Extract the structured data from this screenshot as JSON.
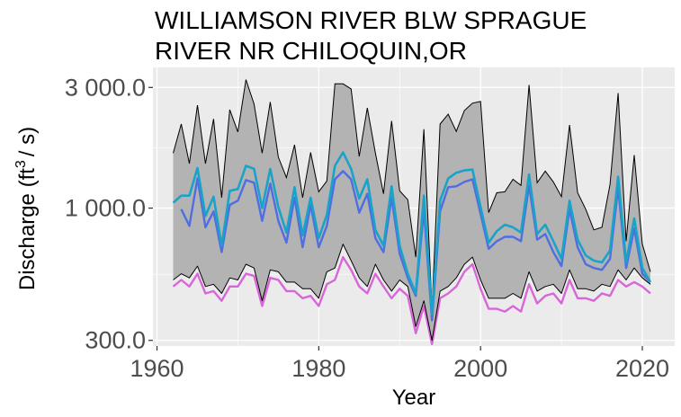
{
  "chart_data": {
    "type": "line",
    "title_line1": "WILLIAMSON RIVER BLW SPRAGUE",
    "title_line2": "RIVER NR CHILOQUIN,OR",
    "xlabel": "Year",
    "ylabel_main": "Discharge (ft",
    "ylabel_sup": "3",
    "ylabel_tail": "/ s)",
    "y_scale": "log",
    "xlim": [
      1959.5,
      2024
    ],
    "ylim": [
      285,
      3600
    ],
    "x_ticks": [
      1960,
      1980,
      2000,
      2020
    ],
    "x_tick_labels": [
      "1960",
      "1980",
      "2000",
      "2020"
    ],
    "y_ticks": [
      300,
      1000,
      3000
    ],
    "y_tick_labels": [
      "300.0",
      "1 000.0",
      "3 000.0"
    ],
    "grid": true,
    "colors": {
      "panel": "#ebebeb",
      "grid": "#ffffff",
      "ribbon": "#b3b3b3",
      "teal": "#1aa3c8",
      "blue": "#4f6ee0",
      "pink": "#d966d9",
      "edge": "#000000"
    },
    "years": [
      1962,
      1963,
      1964,
      1965,
      1966,
      1967,
      1968,
      1969,
      1970,
      1971,
      1972,
      1973,
      1974,
      1975,
      1976,
      1977,
      1978,
      1979,
      1980,
      1981,
      1982,
      1983,
      1984,
      1985,
      1986,
      1987,
      1988,
      1989,
      1990,
      1991,
      1992,
      1993,
      1994,
      1995,
      1996,
      1997,
      1998,
      1999,
      2000,
      2001,
      2002,
      2003,
      2004,
      2005,
      2006,
      2007,
      2008,
      2009,
      2010,
      2011,
      2012,
      2013,
      2014,
      2015,
      2016,
      2017,
      2018,
      2019,
      2020,
      2021
    ],
    "ribbon_max": [
      1650,
      2150,
      1500,
      2550,
      1500,
      2250,
      1100,
      2450,
      2000,
      3220,
      2580,
      1650,
      2630,
      1590,
      1320,
      1780,
      1100,
      1660,
      1160,
      1280,
      3100,
      3100,
      2960,
      1600,
      2490,
      1650,
      1140,
      2210,
      1170,
      1080,
      640,
      2050,
      400,
      2150,
      2350,
      2010,
      2430,
      2600,
      2640,
      960,
      1150,
      1160,
      1300,
      1230,
      3070,
      1260,
      1400,
      1270,
      1110,
      2130,
      1150,
      990,
      820,
      840,
      1240,
      2850,
      740,
      1620,
      720,
      560
    ],
    "ribbon_min": [
      520,
      550,
      530,
      590,
      490,
      500,
      460,
      530,
      520,
      600,
      580,
      430,
      570,
      560,
      510,
      510,
      480,
      480,
      440,
      560,
      580,
      720,
      620,
      530,
      490,
      600,
      520,
      470,
      520,
      490,
      340,
      430,
      300,
      470,
      490,
      530,
      600,
      640,
      520,
      440,
      440,
      440,
      460,
      440,
      560,
      470,
      490,
      500,
      460,
      570,
      480,
      480,
      470,
      500,
      490,
      570,
      520,
      580,
      530,
      500
    ],
    "series": [
      {
        "name": "",
        "color_key": "teal",
        "x_start": 1962,
        "values": [
          1050,
          1120,
          1120,
          1440,
          930,
          1110,
          710,
          1170,
          1190,
          1470,
          1430,
          1000,
          1430,
          1010,
          800,
          1210,
          780,
          1100,
          760,
          940,
          1470,
          1660,
          1430,
          1090,
          1300,
          820,
          710,
          1220,
          710,
          550,
          460,
          1120,
          380,
          1070,
          1310,
          1380,
          1410,
          1420,
          1010,
          730,
          810,
          860,
          840,
          800,
          1360,
          790,
          860,
          740,
          630,
          1070,
          750,
          650,
          620,
          610,
          680,
          1330,
          610,
          910,
          580,
          510
        ]
      },
      {
        "name": "",
        "color_key": "blue",
        "x_start": 1963,
        "values": [
          990,
          850,
          1310,
          840,
          970,
          670,
          1030,
          1070,
          1290,
          1260,
          890,
          1250,
          890,
          730,
          1100,
          700,
          1030,
          700,
          850,
          1300,
          1400,
          1300,
          960,
          1140,
          760,
          670,
          1100,
          660,
          530,
          450,
          980,
          360,
          970,
          1210,
          1220,
          1270,
          1300,
          950,
          690,
          740,
          770,
          770,
          740,
          1230,
          750,
          790,
          670,
          590,
          990,
          700,
          600,
          580,
          570,
          630,
          1200,
          580,
          830,
          550,
          510
        ]
      },
      {
        "name": "",
        "color_key": "pink",
        "x_start": 1962,
        "values": [
          490,
          520,
          490,
          550,
          460,
          470,
          430,
          490,
          490,
          550,
          540,
          410,
          530,
          520,
          470,
          470,
          440,
          450,
          410,
          500,
          520,
          640,
          570,
          490,
          460,
          550,
          490,
          440,
          480,
          450,
          320,
          410,
          290,
          440,
          460,
          490,
          560,
          600,
          480,
          400,
          400,
          390,
          410,
          390,
          500,
          420,
          450,
          460,
          420,
          520,
          440,
          440,
          430,
          460,
          450,
          520,
          490,
          510,
          490,
          460
        ]
      },
      {
        "name": "",
        "color_key": "edge",
        "x_start": 1962,
        "values": [
          520,
          550,
          530,
          590,
          490,
          500,
          460,
          530,
          520,
          600,
          580,
          430,
          570,
          560,
          510,
          510,
          480,
          480,
          440,
          560,
          580,
          720,
          620,
          530,
          490,
          600,
          520,
          470,
          520,
          490,
          340,
          430,
          300,
          470,
          490,
          530,
          600,
          640,
          520,
          440,
          440,
          440,
          460,
          440,
          560,
          470,
          490,
          500,
          460,
          570,
          480,
          480,
          470,
          500,
          490,
          570,
          520,
          580,
          530,
          500
        ]
      }
    ]
  }
}
